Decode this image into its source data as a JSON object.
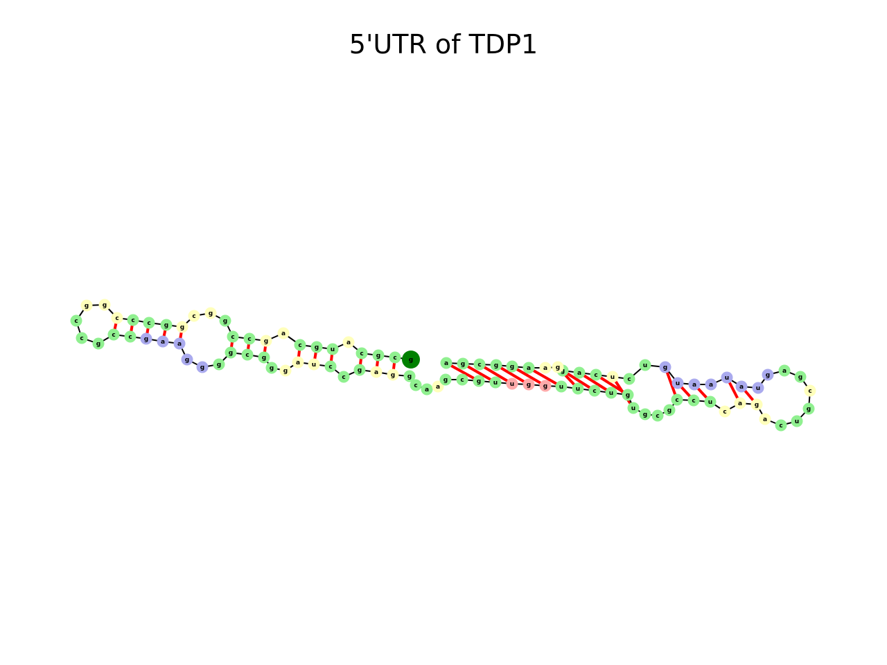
{
  "title": "5'UTR of TDP1",
  "sequence": "gggcccgugcggagggacgcugaccggcugcuaggccgggcccccagucccuccaggcccagcugguguugguuccgggagggaucccaguuuggcagcugguguuggcgcccgaucuggaggggggcuggucc",
  "display": {
    "colors": {
      "stem": "#90f090",
      "hairpin": "#aaaaee",
      "interior": "#ffffbb",
      "exterior": "#ffaaaa",
      "backbone": "#000000",
      "base_pair": "#ff0000",
      "five_prime_marker": "#008000",
      "three_prime_marker": "#ff0000"
    }
  },
  "segments": {
    "left_arm": {
      "top": [
        "g",
        "c",
        "g",
        "c",
        "a",
        "u",
        "g",
        "c",
        "c",
        "g",
        "c",
        "c",
        "g",
        "g",
        "c",
        "g",
        "g",
        "c",
        "c",
        "g",
        "a",
        "g",
        "g"
      ],
      "bottom": [
        "u",
        "g",
        "c",
        "g",
        "a",
        "a",
        "c",
        "g",
        "g",
        "a",
        "g",
        "c",
        "c",
        "u",
        "a",
        "g",
        "g",
        "g",
        "c",
        "g",
        "g",
        "c",
        "c"
      ]
    },
    "left_hairpin": [
      "a",
      "g",
      "g",
      "g",
      "a"
    ],
    "right_arm": {
      "top": [
        "a",
        "g",
        "g",
        "g",
        "u",
        "a",
        "u",
        "u",
        "a",
        "g",
        "c",
        "g",
        "g",
        "a",
        "a",
        "g",
        "g",
        "a",
        "c",
        "u",
        "c",
        "u"
      ],
      "bottom": [
        "u",
        "u",
        "c",
        "u",
        "g",
        "u",
        "g",
        "c",
        "g",
        "c",
        "c",
        "u",
        "c",
        "a",
        "g",
        "a",
        "c",
        "u",
        "g",
        "c",
        "g",
        "a"
      ]
    },
    "right_hairpin": [
      "g",
      "u",
      "a",
      "a",
      "u",
      "a",
      "u",
      "g"
    ],
    "exterior_loop": [
      "u",
      "g",
      "g"
    ]
  },
  "nucleotides": [
    {
      "base": "g",
      "type": "five_prime"
    },
    {
      "base": "c",
      "type": "stem"
    },
    {
      "base": "g",
      "type": "stem"
    },
    {
      "base": "c",
      "type": "stem"
    },
    {
      "base": "a",
      "type": "interior"
    },
    {
      "base": "u",
      "type": "stem"
    },
    {
      "base": "g",
      "type": "stem"
    },
    {
      "base": "c",
      "type": "stem"
    },
    {
      "base": "a",
      "type": "interior"
    },
    {
      "base": "g",
      "type": "interior"
    },
    {
      "base": "c",
      "type": "stem"
    },
    {
      "base": "c",
      "type": "stem"
    },
    {
      "base": "g",
      "type": "stem"
    },
    {
      "base": "g",
      "type": "interior"
    },
    {
      "base": "c",
      "type": "interior"
    },
    {
      "base": "g",
      "type": "interior"
    },
    {
      "base": "g",
      "type": "stem"
    },
    {
      "base": "c",
      "type": "stem"
    },
    {
      "base": "c",
      "type": "stem"
    },
    {
      "base": "c",
      "type": "interior"
    },
    {
      "base": "g",
      "type": "interior"
    },
    {
      "base": "g",
      "type": "interior"
    },
    {
      "base": "c",
      "type": "stem"
    },
    {
      "base": "c",
      "type": "stem"
    },
    {
      "base": "g",
      "type": "stem"
    },
    {
      "base": "c",
      "type": "stem"
    },
    {
      "base": "c",
      "type": "stem"
    },
    {
      "base": "g",
      "type": "hairpin"
    },
    {
      "base": "a",
      "type": "hairpin"
    },
    {
      "base": "a",
      "type": "hairpin"
    },
    {
      "base": "g",
      "type": "hairpin"
    },
    {
      "base": "g",
      "type": "hairpin"
    },
    {
      "base": "g",
      "type": "stem"
    },
    {
      "base": "g",
      "type": "stem"
    },
    {
      "base": "c",
      "type": "stem"
    },
    {
      "base": "g",
      "type": "stem"
    },
    {
      "base": "g",
      "type": "stem"
    },
    {
      "base": "g",
      "type": "interior"
    },
    {
      "base": "a",
      "type": "interior"
    },
    {
      "base": "u",
      "type": "interior"
    },
    {
      "base": "c",
      "type": "stem"
    },
    {
      "base": "c",
      "type": "stem"
    },
    {
      "base": "g",
      "type": "stem"
    },
    {
      "base": "a",
      "type": "interior"
    },
    {
      "base": "g",
      "type": "interior"
    },
    {
      "base": "g",
      "type": "stem"
    },
    {
      "base": "c",
      "type": "stem"
    },
    {
      "base": "a",
      "type": "stem"
    },
    {
      "base": "a",
      "type": "interior"
    },
    {
      "base": "g",
      "type": "stem"
    },
    {
      "base": "c",
      "type": "stem"
    },
    {
      "base": "g",
      "type": "stem"
    },
    {
      "base": "u",
      "type": "stem"
    },
    {
      "base": "u",
      "type": "exterior"
    },
    {
      "base": "g",
      "type": "exterior"
    },
    {
      "base": "g",
      "type": "exterior"
    },
    {
      "base": "u",
      "type": "stem"
    },
    {
      "base": "u",
      "type": "stem"
    },
    {
      "base": "c",
      "type": "stem"
    },
    {
      "base": "u",
      "type": "stem"
    },
    {
      "base": "g",
      "type": "stem"
    },
    {
      "base": "u",
      "type": "stem"
    },
    {
      "base": "g",
      "type": "stem"
    },
    {
      "base": "c",
      "type": "stem"
    },
    {
      "base": "g",
      "type": "stem"
    },
    {
      "base": "c",
      "type": "stem"
    },
    {
      "base": "c",
      "type": "stem"
    },
    {
      "base": "u",
      "type": "stem"
    },
    {
      "base": "c",
      "type": "interior"
    },
    {
      "base": "a",
      "type": "interior"
    },
    {
      "base": "g",
      "type": "interior"
    },
    {
      "base": "a",
      "type": "interior"
    },
    {
      "base": "c",
      "type": "stem"
    },
    {
      "base": "u",
      "type": "stem"
    },
    {
      "base": "g",
      "type": "stem"
    },
    {
      "base": "c",
      "type": "interior"
    },
    {
      "base": "g",
      "type": "stem"
    },
    {
      "base": "a",
      "type": "stem"
    },
    {
      "base": "g",
      "type": "hairpin"
    },
    {
      "base": "u",
      "type": "hairpin"
    },
    {
      "base": "a",
      "type": "hairpin"
    },
    {
      "base": "u",
      "type": "hairpin"
    },
    {
      "base": "a",
      "type": "hairpin"
    },
    {
      "base": "a",
      "type": "hairpin"
    },
    {
      "base": "u",
      "type": "hairpin"
    },
    {
      "base": "g",
      "type": "hairpin"
    },
    {
      "base": "u",
      "type": "stem"
    },
    {
      "base": "c",
      "type": "stem"
    },
    {
      "base": "u",
      "type": "interior"
    },
    {
      "base": "c",
      "type": "stem"
    },
    {
      "base": "a",
      "type": "stem"
    },
    {
      "base": "g",
      "type": "stem"
    },
    {
      "base": "g",
      "type": "interior"
    },
    {
      "base": "a",
      "type": "interior"
    },
    {
      "base": "a",
      "type": "stem"
    },
    {
      "base": "g",
      "type": "stem"
    },
    {
      "base": "g",
      "type": "stem"
    },
    {
      "base": "c",
      "type": "stem"
    },
    {
      "base": "g",
      "type": "stem"
    },
    {
      "base": "a",
      "type": "stem"
    },
    {
      "base": "u",
      "type": "stem"
    },
    {
      "base": "u",
      "type": "stem"
    },
    {
      "base": "a",
      "type": "stem"
    },
    {
      "base": "u",
      "type": "stem"
    },
    {
      "base": "g",
      "type": "stem"
    },
    {
      "base": "g",
      "type": "stem"
    },
    {
      "base": "g",
      "type": "stem"
    },
    {
      "base": "a",
      "type": "three_prime"
    }
  ]
}
